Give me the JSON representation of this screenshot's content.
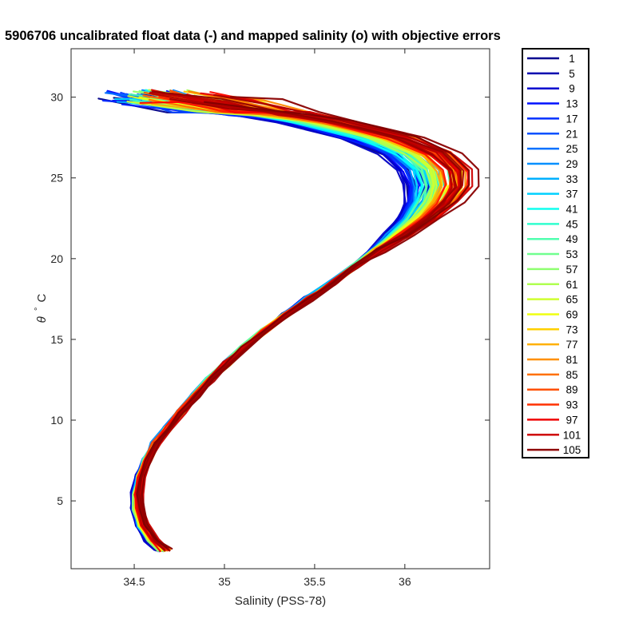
{
  "chart_data": {
    "type": "line",
    "title": "5906706 uncalibrated float data (-) and mapped salinity (o) with objective errors",
    "xlabel": "Salinity (PSS-78)",
    "ylabel_symbol": "θ",
    "ylabel_unit": "°",
    "ylabel_suffix": "C",
    "xlim": [
      34.15,
      36.47
    ],
    "ylim": [
      0.8,
      33.0
    ],
    "xticks": [
      34.5,
      35,
      35.5,
      36
    ],
    "xtick_labels": [
      "34.5",
      "35",
      "35.5",
      "36"
    ],
    "yticks": [
      5,
      10,
      15,
      20,
      25,
      30
    ],
    "ytick_labels": [
      "5",
      "10",
      "15",
      "20",
      "25",
      "30"
    ],
    "grid": false,
    "legend_position": "outside-right",
    "legend": [
      "1",
      "5",
      "9",
      "13",
      "17",
      "21",
      "25",
      "29",
      "33",
      "37",
      "41",
      "45",
      "49",
      "53",
      "57",
      "61",
      "65",
      "69",
      "73",
      "77",
      "81",
      "85",
      "89",
      "93",
      "97",
      "101",
      "105"
    ],
    "colormap": "jet",
    "profile_count": 105,
    "base_profile": {
      "theta": [
        2.0,
        2.6,
        3.5,
        4.5,
        5.5,
        6.5,
        7.5,
        8.5,
        9.5,
        10.5,
        11.5,
        12.5,
        13.5,
        14.5,
        15.5,
        16.5,
        17.5,
        18.5,
        19.5,
        20.5,
        21.5,
        22.5,
        23.5,
        24.5,
        25.5,
        26.5,
        27.5,
        28.5,
        29.0,
        29.5,
        30.0
      ],
      "salinity": [
        34.63,
        34.57,
        34.52,
        34.5,
        34.5,
        34.52,
        34.56,
        34.61,
        34.68,
        34.75,
        34.83,
        34.91,
        35.0,
        35.1,
        35.21,
        35.33,
        35.46,
        35.59,
        35.71,
        35.83,
        35.95,
        36.06,
        36.14,
        36.18,
        36.16,
        36.06,
        35.85,
        35.5,
        35.2,
        34.9,
        34.55
      ]
    },
    "series": [
      {
        "name": "1",
        "color": "#00008F"
      },
      {
        "name": "5",
        "color": "#0000AF"
      },
      {
        "name": "9",
        "color": "#0000CF"
      },
      {
        "name": "13",
        "color": "#0010FF"
      },
      {
        "name": "17",
        "color": "#0030FF"
      },
      {
        "name": "21",
        "color": "#0050FF"
      },
      {
        "name": "25",
        "color": "#0070FF"
      },
      {
        "name": "29",
        "color": "#0090FF"
      },
      {
        "name": "33",
        "color": "#00B0FF"
      },
      {
        "name": "37",
        "color": "#00D0FF"
      },
      {
        "name": "41",
        "color": "#10FFEF"
      },
      {
        "name": "45",
        "color": "#30FFCF"
      },
      {
        "name": "49",
        "color": "#50FFAF"
      },
      {
        "name": "53",
        "color": "#70FF8F"
      },
      {
        "name": "57",
        "color": "#8FFF70"
      },
      {
        "name": "61",
        "color": "#AFFF50"
      },
      {
        "name": "65",
        "color": "#CFFF30"
      },
      {
        "name": "69",
        "color": "#EFFF10"
      },
      {
        "name": "73",
        "color": "#FFD000"
      },
      {
        "name": "77",
        "color": "#FFB000"
      },
      {
        "name": "81",
        "color": "#FF9000"
      },
      {
        "name": "85",
        "color": "#FF7000"
      },
      {
        "name": "89",
        "color": "#FF5000"
      },
      {
        "name": "93",
        "color": "#FF3000"
      },
      {
        "name": "97",
        "color": "#EF0000"
      },
      {
        "name": "101",
        "color": "#CF0000"
      },
      {
        "name": "105",
        "color": "#8F0000"
      }
    ]
  }
}
